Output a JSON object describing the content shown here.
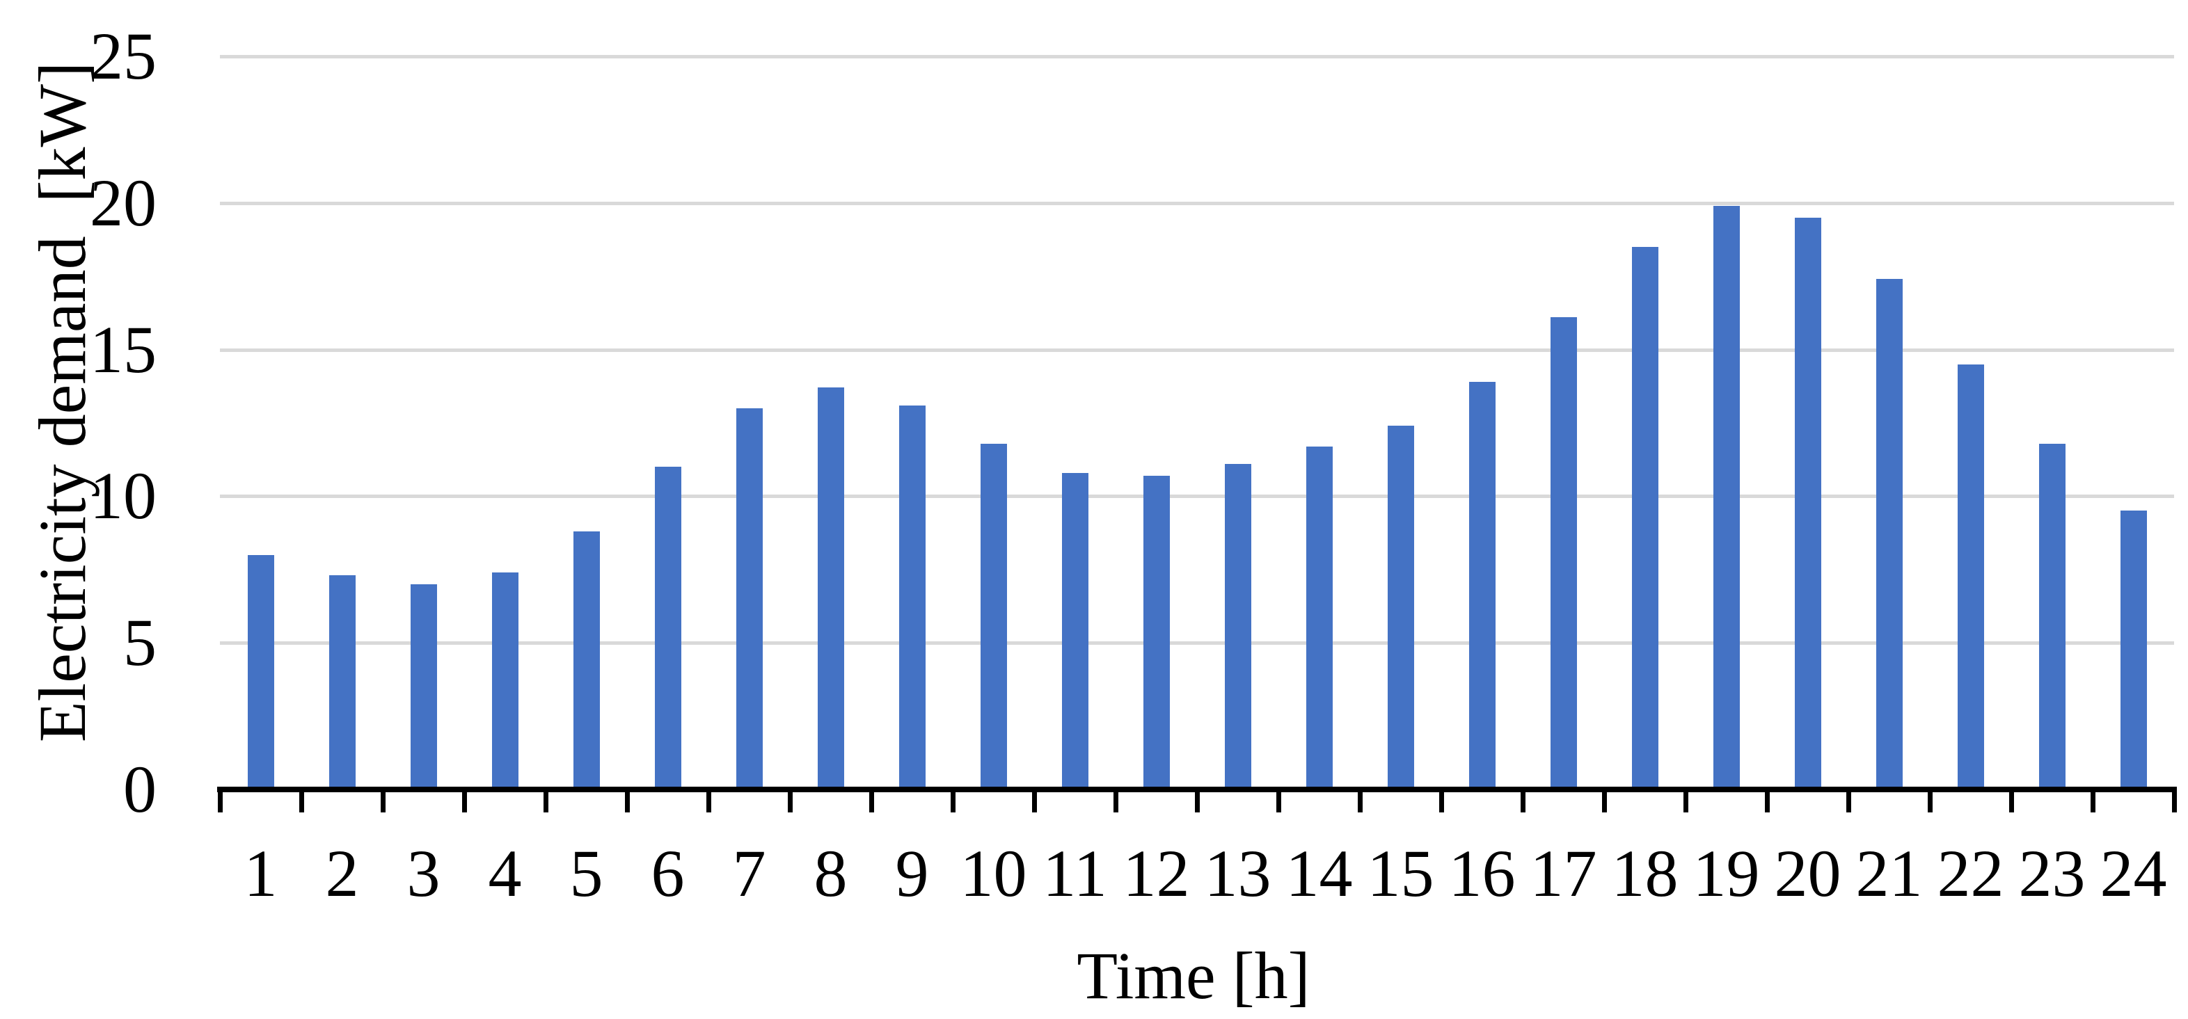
{
  "chart_data": {
    "type": "bar",
    "title": "",
    "xlabel": "Time [h]",
    "ylabel": "Electricity demand  [kW]",
    "categories": [
      "1",
      "2",
      "3",
      "4",
      "5",
      "6",
      "7",
      "8",
      "9",
      "10",
      "11",
      "12",
      "13",
      "14",
      "15",
      "16",
      "17",
      "18",
      "19",
      "20",
      "21",
      "22",
      "23",
      "24"
    ],
    "values": [
      8.0,
      7.3,
      7.0,
      7.4,
      8.8,
      11.0,
      13.0,
      13.7,
      13.1,
      11.8,
      10.8,
      10.7,
      11.1,
      11.7,
      12.4,
      13.9,
      16.1,
      18.5,
      19.9,
      19.5,
      17.4,
      14.5,
      11.8,
      9.5
    ],
    "ylim": [
      0,
      25
    ],
    "yticks": [
      0,
      5,
      10,
      15,
      20,
      25
    ],
    "grid": true,
    "legend": "none",
    "series_name": "Electricity demand",
    "bar_color": "#4472C4",
    "gridline_color": "#D9D9D9",
    "axis_color": "#000000",
    "text_color": "#000000",
    "background_color": "#FFFFFF"
  }
}
